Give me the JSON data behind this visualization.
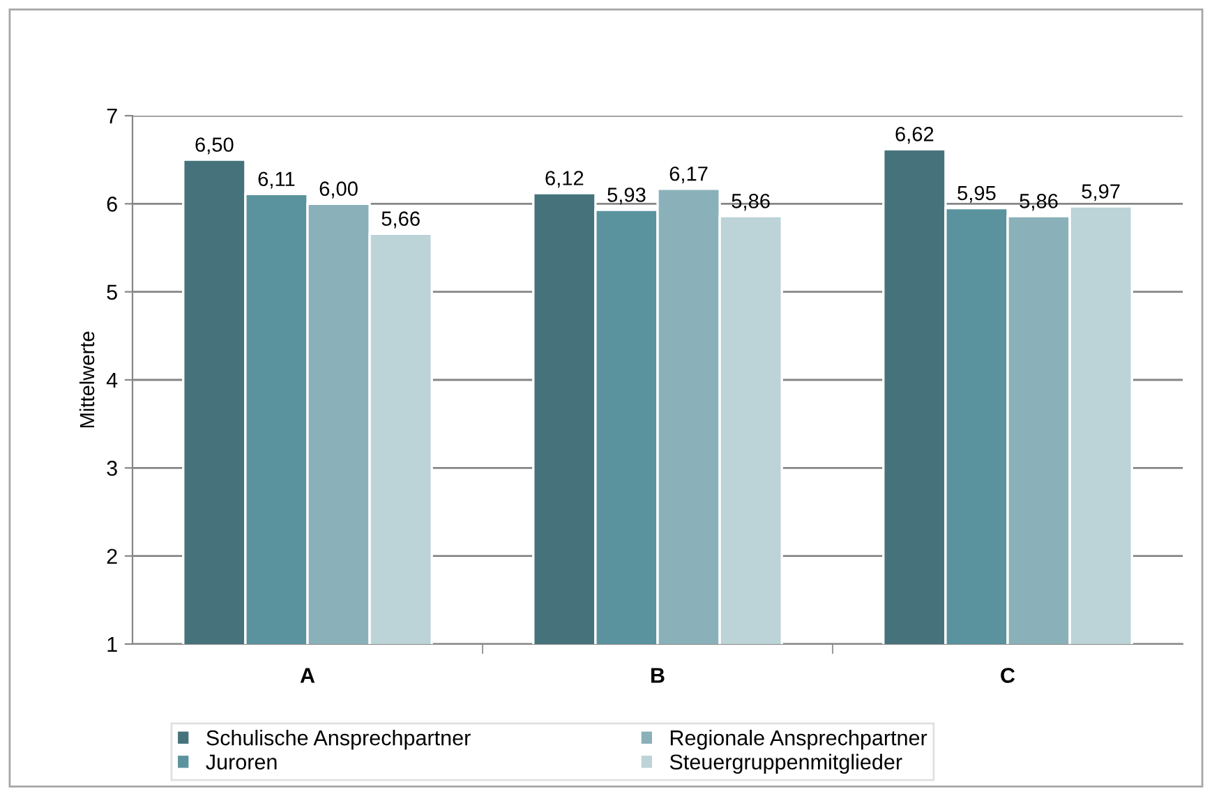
{
  "chart_data": {
    "type": "bar",
    "ylabel": "Mittelwerte",
    "categories": [
      "A",
      "B",
      "C"
    ],
    "series": [
      {
        "name": "Schulische Ansprechpartner",
        "color": "#46737b",
        "values": [
          6.5,
          6.12,
          6.62
        ],
        "value_labels": [
          "6,50",
          "6,12",
          "6,62"
        ]
      },
      {
        "name": "Juroren",
        "color": "#5a939d",
        "values": [
          6.11,
          5.93,
          5.95
        ],
        "value_labels": [
          "6,11",
          "5,93",
          "5,95"
        ]
      },
      {
        "name": "Regionale Ansprechpartner",
        "color": "#8ab1b9",
        "values": [
          6.0,
          6.17,
          5.86
        ],
        "value_labels": [
          "6,00",
          "6,17",
          "5,86"
        ]
      },
      {
        "name": "Steuergruppenmitglieder",
        "color": "#bcd3d8",
        "values": [
          5.66,
          5.86,
          5.97
        ],
        "value_labels": [
          "5,66",
          "5,86",
          "5,97"
        ]
      }
    ],
    "ylim": [
      1,
      7
    ],
    "yticks": [
      1,
      2,
      3,
      4,
      5,
      6,
      7
    ],
    "grid": "y",
    "legend": "bottom"
  }
}
